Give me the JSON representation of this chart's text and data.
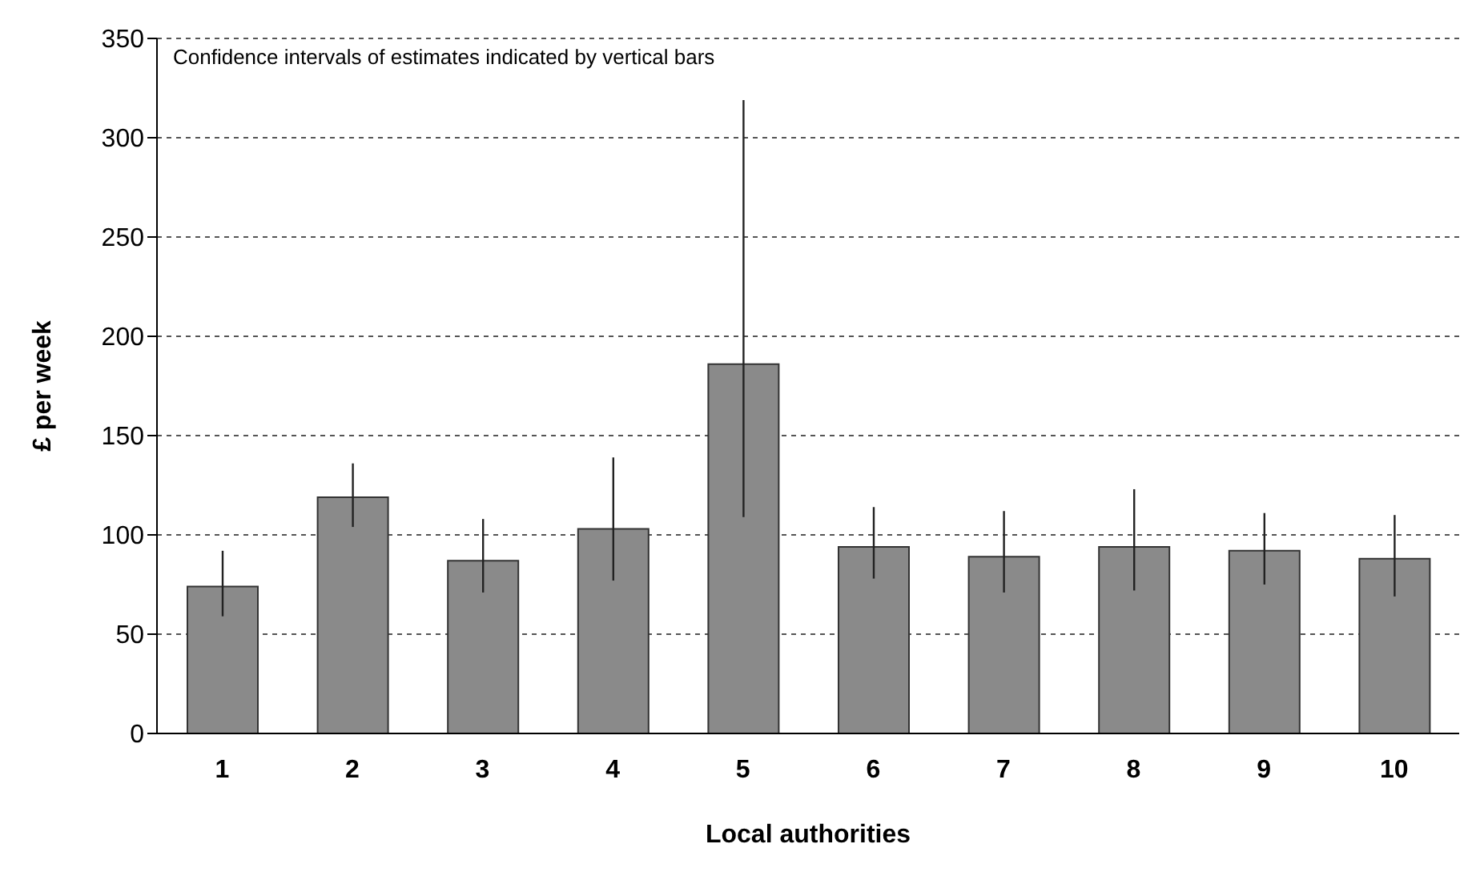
{
  "chart_data": {
    "type": "bar",
    "xlabel": "Local authorities",
    "ylabel": "£ per week",
    "annotations": [
      "Confidence intervals of estimates indicated by vertical bars"
    ],
    "categories": [
      "1",
      "2",
      "3",
      "4",
      "5",
      "6",
      "7",
      "8",
      "9",
      "10"
    ],
    "values": [
      74,
      119,
      87,
      103,
      186,
      94,
      89,
      94,
      92,
      88
    ],
    "errors": [
      [
        59,
        92
      ],
      [
        104,
        136
      ],
      [
        71,
        108
      ],
      [
        77,
        139
      ],
      [
        109,
        319
      ],
      [
        78,
        114
      ],
      [
        71,
        112
      ],
      [
        72,
        123
      ],
      [
        75,
        111
      ],
      [
        69,
        110
      ]
    ],
    "color": "#8a8a8a",
    "ylim": [
      0,
      350
    ],
    "yticks": [
      0,
      50,
      100,
      150,
      200,
      250,
      300,
      350
    ],
    "grid": "y",
    "legend": false
  }
}
